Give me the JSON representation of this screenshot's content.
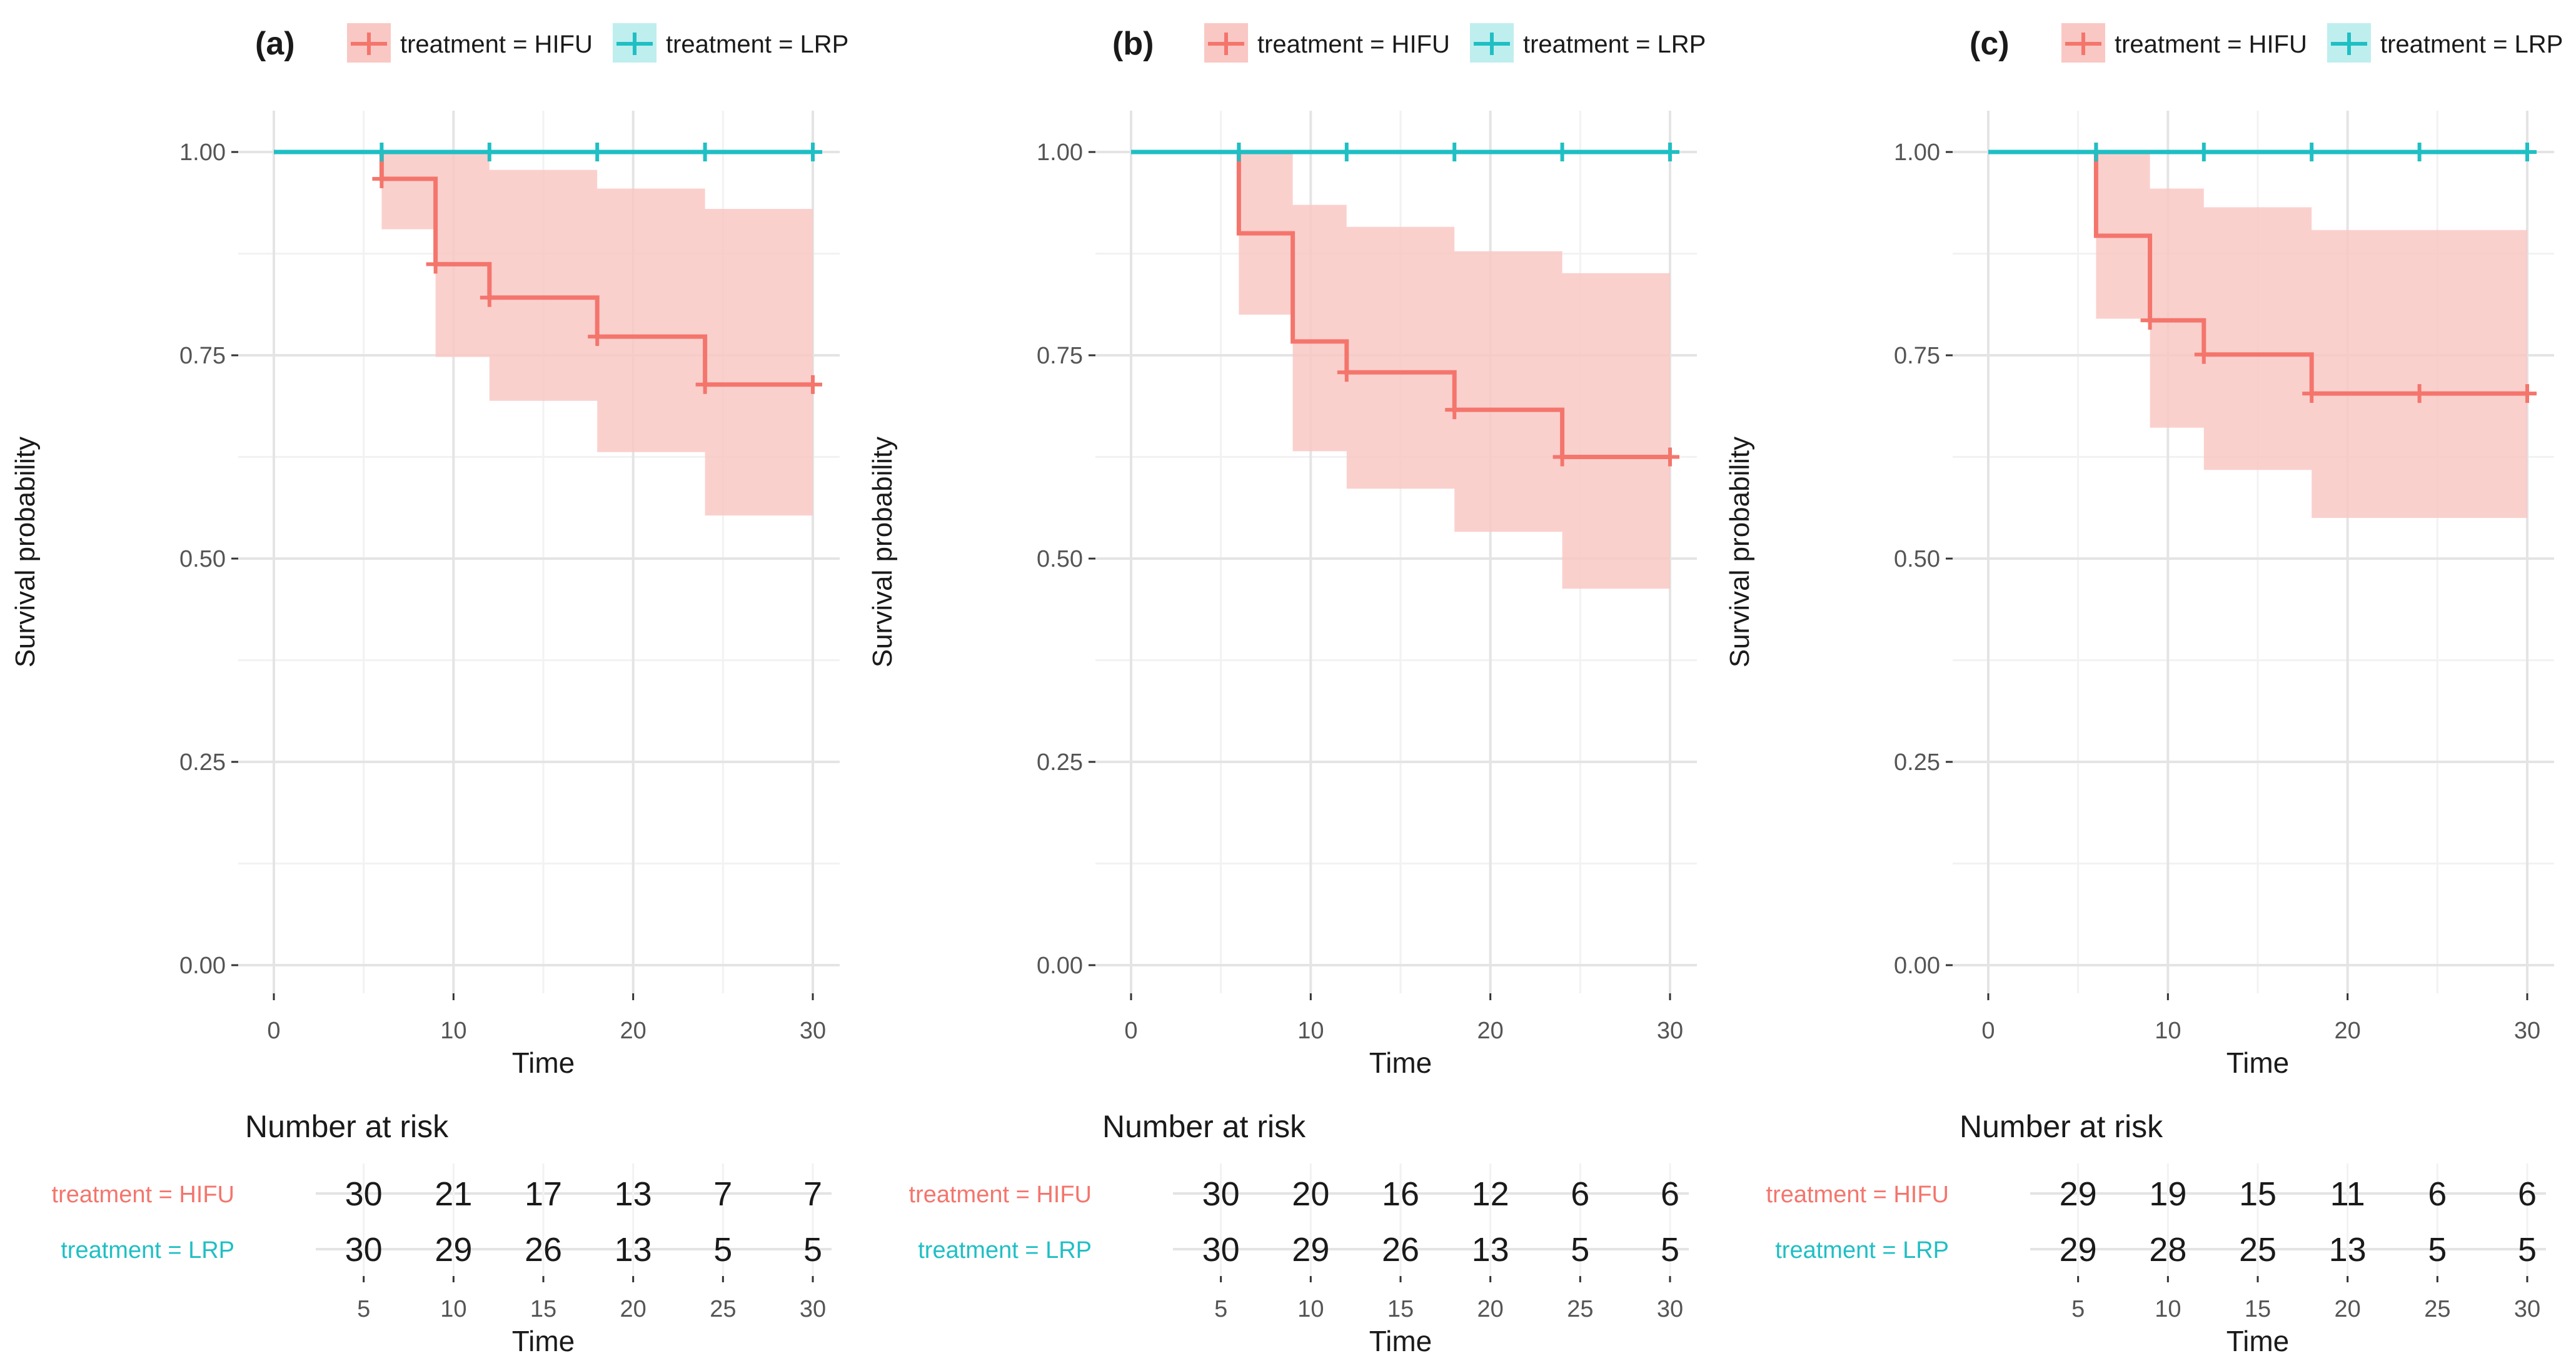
{
  "figure": {
    "colors": {
      "hifu_line": "#f4756c",
      "hifu_band": "#f9c8c4",
      "lrp_line": "#1fbfc4",
      "grid_minor": "#f2f2f2",
      "grid_major": "#e4e4e4",
      "text_dark": "#1a1a1a",
      "text_muted": "#555555"
    }
  },
  "chart_data": [
    {
      "panel": "(a)",
      "type": "line",
      "subtype": "kaplan-meier",
      "title": "",
      "xlabel": "Time",
      "ylabel": "Survival probability",
      "xlim": [
        0,
        30
      ],
      "ylim": [
        0,
        1
      ],
      "x_ticks": [
        0,
        10,
        20,
        30
      ],
      "y_ticks": [
        0.0,
        0.25,
        0.5,
        0.75,
        1.0
      ],
      "y_tick_labels": [
        "0.00",
        "0.25",
        "0.50",
        "0.75",
        "1.00"
      ],
      "legend": [
        "treatment = HIFU",
        "treatment = LRP"
      ],
      "legend_position": "top",
      "series": [
        {
          "name": "treatment = HIFU",
          "steps": [
            [
              0,
              1.0
            ],
            [
              6,
              0.967
            ],
            [
              9,
              0.862
            ],
            [
              12,
              0.821
            ],
            [
              18,
              0.773
            ],
            [
              24,
              0.714
            ],
            [
              30,
              0.714
            ]
          ],
          "ci_lower": [
            [
              0,
              1.0
            ],
            [
              6,
              0.905
            ],
            [
              9,
              0.748
            ],
            [
              12,
              0.694
            ],
            [
              18,
              0.631
            ],
            [
              24,
              0.553
            ],
            [
              30,
              0.553
            ]
          ],
          "ci_upper": [
            [
              0,
              1.0
            ],
            [
              6,
              1.0
            ],
            [
              9,
              1.0
            ],
            [
              12,
              0.978
            ],
            [
              18,
              0.955
            ],
            [
              24,
              0.93
            ],
            [
              30,
              0.93
            ]
          ],
          "censor_marks": [
            [
              6,
              0.967
            ],
            [
              9,
              0.862
            ],
            [
              12,
              0.821
            ],
            [
              18,
              0.773
            ],
            [
              24,
              0.714
            ],
            [
              30,
              0.714
            ]
          ]
        },
        {
          "name": "treatment = LRP",
          "steps": [
            [
              0,
              1.0
            ],
            [
              30,
              1.0
            ]
          ],
          "censor_marks": [
            [
              6,
              1.0
            ],
            [
              12,
              1.0
            ],
            [
              18,
              1.0
            ],
            [
              24,
              1.0
            ],
            [
              30,
              1.0
            ]
          ]
        }
      ],
      "risk_table": {
        "title": "Number at risk",
        "xlabel": "Time",
        "times": [
          5,
          10,
          15,
          20,
          25,
          30
        ],
        "rows": [
          {
            "label": "treatment = HIFU",
            "values": [
              30,
              21,
              17,
              13,
              7,
              7
            ]
          },
          {
            "label": "treatment = LRP",
            "values": [
              30,
              29,
              26,
              13,
              5,
              5
            ]
          }
        ]
      }
    },
    {
      "panel": "(b)",
      "type": "line",
      "subtype": "kaplan-meier",
      "title": "",
      "xlabel": "Time",
      "ylabel": "Survival probability",
      "xlim": [
        0,
        30
      ],
      "ylim": [
        0,
        1
      ],
      "x_ticks": [
        0,
        10,
        20,
        30
      ],
      "y_ticks": [
        0.0,
        0.25,
        0.5,
        0.75,
        1.0
      ],
      "y_tick_labels": [
        "0.00",
        "0.25",
        "0.50",
        "0.75",
        "1.00"
      ],
      "legend": [
        "treatment = HIFU",
        "treatment = LRP"
      ],
      "legend_position": "top",
      "series": [
        {
          "name": "treatment = HIFU",
          "steps": [
            [
              0,
              1.0
            ],
            [
              6,
              0.9
            ],
            [
              9,
              0.767
            ],
            [
              12,
              0.729
            ],
            [
              18,
              0.683
            ],
            [
              24,
              0.625
            ],
            [
              30,
              0.625
            ]
          ],
          "ci_lower": [
            [
              0,
              1.0
            ],
            [
              6,
              0.8
            ],
            [
              9,
              0.632
            ],
            [
              12,
              0.586
            ],
            [
              18,
              0.533
            ],
            [
              24,
              0.463
            ],
            [
              30,
              0.463
            ]
          ],
          "ci_upper": [
            [
              0,
              1.0
            ],
            [
              6,
              1.0
            ],
            [
              9,
              0.935
            ],
            [
              12,
              0.908
            ],
            [
              18,
              0.878
            ],
            [
              24,
              0.851
            ],
            [
              30,
              0.851
            ]
          ],
          "censor_marks": [
            [
              6,
              1.0
            ],
            [
              12,
              0.729
            ],
            [
              18,
              0.683
            ],
            [
              24,
              0.625
            ],
            [
              30,
              0.625
            ]
          ]
        },
        {
          "name": "treatment = LRP",
          "steps": [
            [
              0,
              1.0
            ],
            [
              30,
              1.0
            ]
          ],
          "censor_marks": [
            [
              6,
              1.0
            ],
            [
              12,
              1.0
            ],
            [
              18,
              1.0
            ],
            [
              24,
              1.0
            ],
            [
              30,
              1.0
            ]
          ]
        }
      ],
      "risk_table": {
        "title": "Number at risk",
        "xlabel": "Time",
        "times": [
          5,
          10,
          15,
          20,
          25,
          30
        ],
        "rows": [
          {
            "label": "treatment = HIFU",
            "values": [
              30,
              20,
              16,
              12,
              6,
              6
            ]
          },
          {
            "label": "treatment = LRP",
            "values": [
              30,
              29,
              26,
              13,
              5,
              5
            ]
          }
        ]
      }
    },
    {
      "panel": "(c)",
      "type": "line",
      "subtype": "kaplan-meier",
      "title": "",
      "xlabel": "Time",
      "ylabel": "Survival probability",
      "xlim": [
        0,
        30
      ],
      "ylim": [
        0,
        1
      ],
      "x_ticks": [
        0,
        10,
        20,
        30
      ],
      "y_ticks": [
        0.0,
        0.25,
        0.5,
        0.75,
        1.0
      ],
      "y_tick_labels": [
        "0.00",
        "0.25",
        "0.50",
        "0.75",
        "1.00"
      ],
      "legend": [
        "treatment = HIFU",
        "treatment = LRP"
      ],
      "legend_position": "top",
      "series": [
        {
          "name": "treatment = HIFU",
          "steps": [
            [
              0,
              1.0
            ],
            [
              6,
              0.897
            ],
            [
              9,
              0.793
            ],
            [
              12,
              0.751
            ],
            [
              18,
              0.703
            ],
            [
              24,
              0.703
            ],
            [
              30,
              0.703
            ]
          ],
          "ci_lower": [
            [
              0,
              1.0
            ],
            [
              6,
              0.795
            ],
            [
              9,
              0.661
            ],
            [
              12,
              0.609
            ],
            [
              18,
              0.55
            ],
            [
              24,
              0.55
            ],
            [
              30,
              0.55
            ]
          ],
          "ci_upper": [
            [
              0,
              1.0
            ],
            [
              6,
              1.0
            ],
            [
              9,
              0.955
            ],
            [
              12,
              0.932
            ],
            [
              18,
              0.904
            ],
            [
              24,
              0.904
            ],
            [
              30,
              0.904
            ]
          ],
          "censor_marks": [
            [
              6,
              1.0
            ],
            [
              9,
              0.793
            ],
            [
              12,
              0.751
            ],
            [
              18,
              0.703
            ],
            [
              24,
              0.703
            ],
            [
              30,
              0.703
            ]
          ]
        },
        {
          "name": "treatment = LRP",
          "steps": [
            [
              0,
              1.0
            ],
            [
              30,
              1.0
            ]
          ],
          "censor_marks": [
            [
              6,
              1.0
            ],
            [
              12,
              1.0
            ],
            [
              18,
              1.0
            ],
            [
              24,
              1.0
            ],
            [
              30,
              1.0
            ]
          ]
        }
      ],
      "risk_table": {
        "title": "Number at risk",
        "xlabel": "Time",
        "times": [
          5,
          10,
          15,
          20,
          25,
          30
        ],
        "rows": [
          {
            "label": "treatment = HIFU",
            "values": [
              29,
              19,
              15,
              11,
              6,
              6
            ]
          },
          {
            "label": "treatment = LRP",
            "values": [
              29,
              28,
              25,
              13,
              5,
              5
            ]
          }
        ]
      }
    }
  ]
}
